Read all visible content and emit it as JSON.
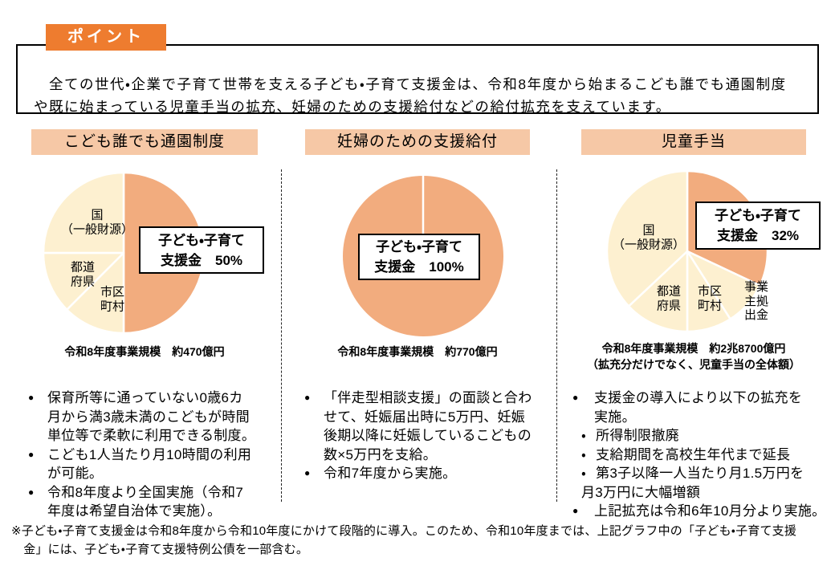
{
  "point_tab": {
    "label": "ポイント",
    "bg": "#EE7C2F"
  },
  "intro": {
    "text": "　全ての世代・企業で子育て世帯を支える子ども・子育て支援金は、令和8年度から始まるこども誰でも通園制度や既に始まっている児童手当の拡充、妊婦のための支援給付などの給付拡充を支えています。"
  },
  "colors": {
    "accent_orange": "#EE7C2F",
    "header_band": "#F6C8A6",
    "pie_orange": "#F2AC7E",
    "pie_cream": "#FDF0D0"
  },
  "columns": [
    {
      "header": "こども誰でも通園制度",
      "callout": {
        "line1": "子ども・子育て",
        "line2": "支援金　50%"
      },
      "caption": "令和8年度事業規模　約470億円",
      "pie_labels": [
        {
          "l1": "国",
          "l2": "（一般財源）"
        },
        {
          "l1": "都道",
          "l2": "府県"
        },
        {
          "l1": "市区",
          "l2": "町村"
        }
      ],
      "bullets": [
        {
          "marker": "●",
          "text": "保育所等に通っていない0歳6カ\n月から満3歳未満のこどもが時間\n単位等で柔軟に利用できる制度。"
        },
        {
          "marker": "●",
          "text": "こども1人当たり月10時間の利用\nが可能。"
        },
        {
          "marker": "●",
          "text": "令和8年度より全国実施（令和7\n年度は希望自治体で実施）。"
        }
      ]
    },
    {
      "header": "妊婦のための支援給付",
      "callout": {
        "line1": "子ども・子育て",
        "line2": "支援金　100%"
      },
      "caption": "令和8年度事業規模　約770億円",
      "pie_labels": [],
      "bullets": [
        {
          "marker": "●",
          "text": "「伴走型相談支援」の面談と合わ\nせて、妊娠届出時に5万円、妊娠\n後期以降に妊娠しているこどもの\n数×5万円を支給。"
        },
        {
          "marker": "●",
          "text": "令和7年度から実施。"
        }
      ]
    },
    {
      "header": "児童手当",
      "callout": {
        "line1": "子ども・子育て",
        "line2": "支援金　32%"
      },
      "caption": "令和8年度事業規模　約2兆8700億円\n（拡充分だけでなく、児童手当の全体額）",
      "pie_labels": [
        {
          "l1": "国",
          "l2": "（一般財源）"
        },
        {
          "l1": "都道",
          "l2": "府県"
        },
        {
          "l1": "市区",
          "l2": "町村"
        },
        {
          "l1": "事業",
          "l2": "主拠",
          "l3": "出金"
        }
      ],
      "bullets": [
        {
          "marker": "●",
          "text": "支援金の導入により以下の拡充を\n実施。"
        },
        {
          "marker": "・",
          "text": "所得制限撤廃"
        },
        {
          "marker": "・",
          "text": "支給期間を高校生年代まで延長"
        },
        {
          "marker": "・",
          "text": "第3子以降一人当たり月1.5万円を\n月3万円に大幅増額"
        },
        {
          "marker": "●",
          "text": "上記拡充は令和6年10月分より実施。"
        }
      ]
    }
  ],
  "footnote": {
    "text": "※子ども・子育て支援金は令和8年度から令和10年度にかけて段階的に導入。このため、令和10年度までは、上記グラフ中の「子ども・子育て支援\n　金」には、子ども・子育て支援特例公債を一部含む。"
  },
  "chart_data": [
    {
      "type": "pie",
      "title": "こども誰でも通園制度",
      "caption": "令和8年度事業規模 約470億円",
      "start_at_top": true,
      "clockwise": true,
      "slices": [
        {
          "label": "子ども・子育て支援金",
          "value": 50,
          "color": "#F2AC7E"
        },
        {
          "label": "市区町村",
          "value": 12.5,
          "color": "#FDF0D0"
        },
        {
          "label": "都道府県",
          "value": 12.5,
          "color": "#FDF0D0"
        },
        {
          "label": "国（一般財源）",
          "value": 25,
          "color": "#FDF0D0"
        }
      ]
    },
    {
      "type": "pie",
      "title": "妊婦のための支援給付",
      "caption": "令和8年度事業規模 約770億円",
      "start_at_top": true,
      "clockwise": true,
      "slices": [
        {
          "label": "子ども・子育て支援金",
          "value": 100,
          "color": "#F2AC7E"
        }
      ]
    },
    {
      "type": "pie",
      "title": "児童手当",
      "caption": "令和8年度事業規模 約2兆8700億円（拡充分だけでなく、児童手当の全体額）",
      "start_at_top": true,
      "clockwise": true,
      "slices": [
        {
          "label": "子ども・子育て支援金",
          "value": 32,
          "color": "#F2AC7E"
        },
        {
          "label": "事業主拠出金",
          "value": 9,
          "color": "#FDF0D0"
        },
        {
          "label": "市区町村",
          "value": 9,
          "color": "#FDF0D0"
        },
        {
          "label": "都道府県",
          "value": 13,
          "color": "#FDF0D0"
        },
        {
          "label": "国（一般財源）",
          "value": 37,
          "color": "#FDF0D0"
        }
      ]
    }
  ]
}
